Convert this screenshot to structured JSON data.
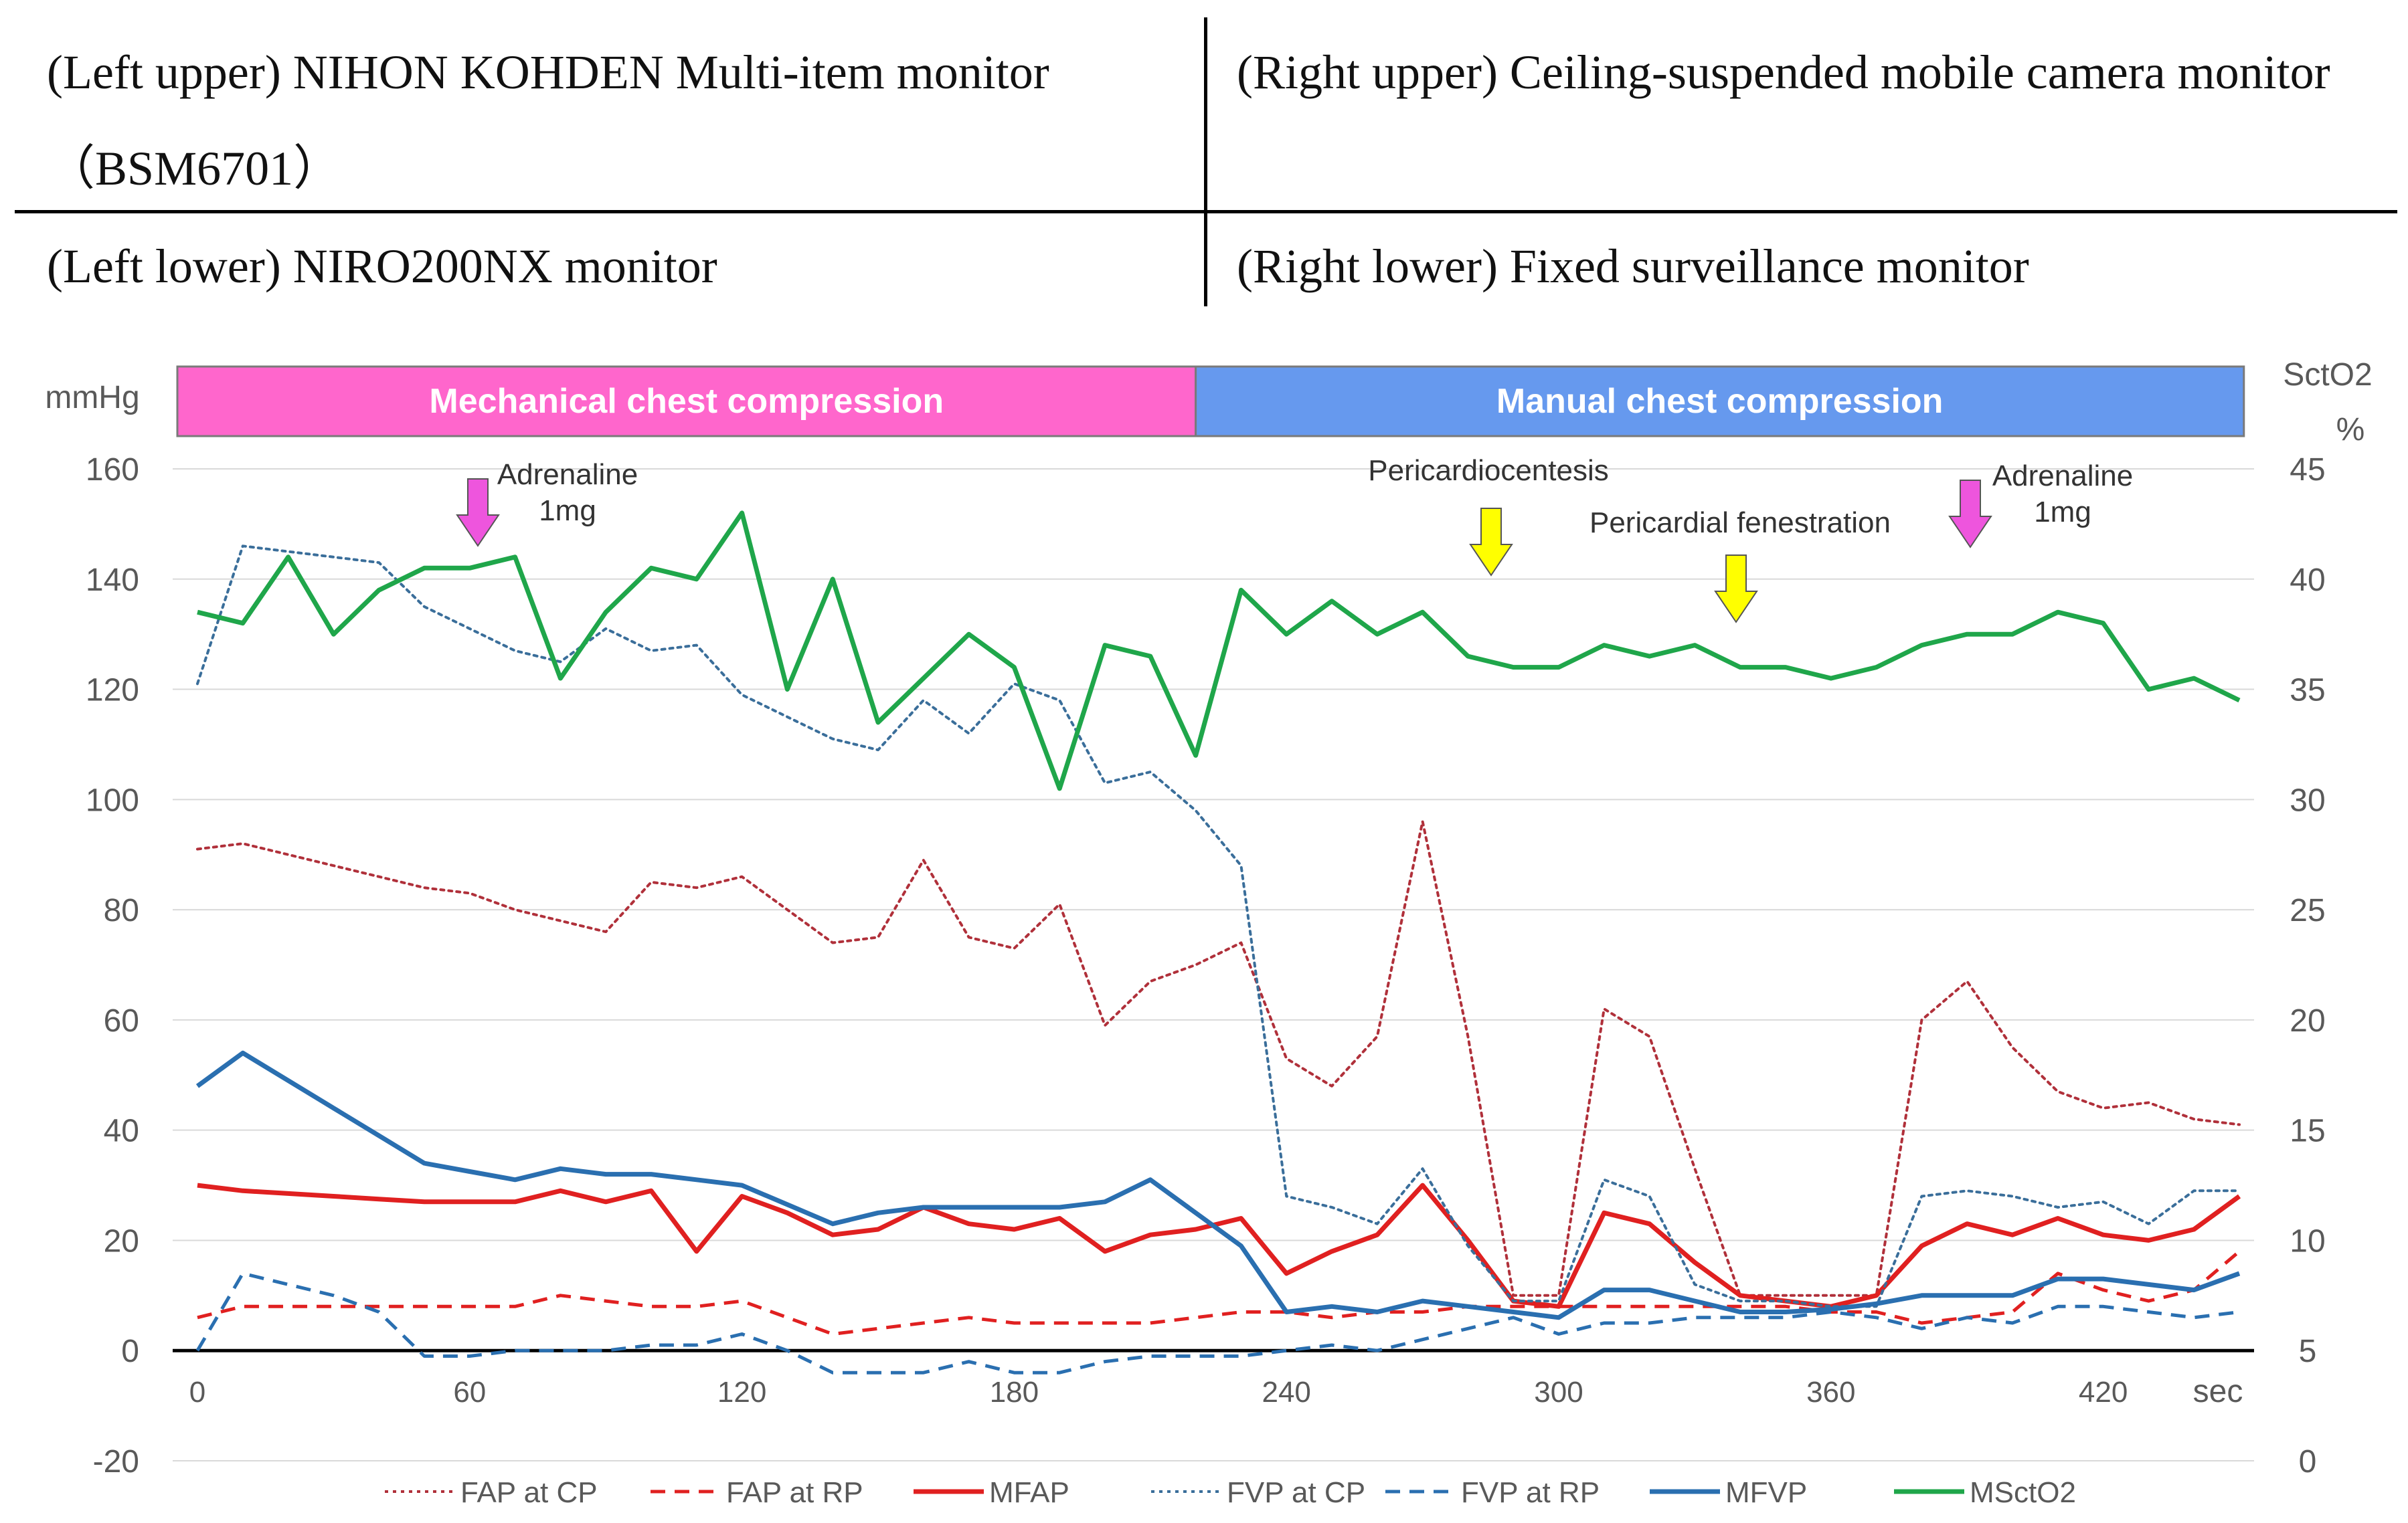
{
  "caption_table": {
    "left_upper": "(Left upper) NIHON KOHDEN Multi-item monitor（BSM6701）",
    "right_upper": "(Right upper) Ceiling-suspended mobile camera monitor",
    "left_lower": "(Left lower) NIRO200NX monitor",
    "right_lower": "(Right lower) Fixed surveillance monitor"
  },
  "colors": {
    "mechanical_band": "#ff66cc",
    "manual_band": "#6699ee",
    "red": "#e02020",
    "blue": "#2a6fb0",
    "green": "#1fa64a",
    "arrow_magenta": "#ee55dd",
    "arrow_yellow": "#ffff00"
  },
  "chart_data": {
    "type": "line",
    "title": "",
    "xlabel": "sec",
    "ylabel_left": "mmHg",
    "ylabel_right_1": "SctO2",
    "ylabel_right_2": "%",
    "xlim": [
      0,
      450
    ],
    "ylim_left": [
      -20,
      160
    ],
    "ylim_right": [
      0,
      45
    ],
    "xticks": [
      0,
      60,
      120,
      180,
      240,
      300,
      360,
      420
    ],
    "yticks_left": [
      -20,
      0,
      20,
      40,
      60,
      80,
      100,
      120,
      140,
      160
    ],
    "yticks_right": [
      0,
      5,
      10,
      15,
      20,
      25,
      30,
      35,
      40,
      45
    ],
    "grid": true,
    "legend_position": "bottom",
    "phases": [
      {
        "label": "Mechanical chest compression",
        "start": -5,
        "end": 220,
        "color": "#ff66cc"
      },
      {
        "label": "Manual chest compression",
        "start": 220,
        "end": 451,
        "color": "#6699ee"
      }
    ],
    "annotations": [
      {
        "label": "Adrenaline\n1mg",
        "x": 62,
        "arrow": "magenta"
      },
      {
        "label": "Pericardiocentesis",
        "x": 284,
        "arrow": "yellow"
      },
      {
        "label": "Pericardial fenestration",
        "x": 338,
        "arrow": "yellow"
      },
      {
        "label": "Adrenaline\n1mg",
        "x": 391,
        "arrow": "magenta"
      }
    ],
    "series": [
      {
        "name": "FAP at CP",
        "axis": "left",
        "style": "dotted",
        "color": "#b0303a",
        "x": [
          0,
          10,
          20,
          30,
          40,
          50,
          60,
          70,
          80,
          90,
          100,
          110,
          120,
          130,
          140,
          150,
          160,
          170,
          180,
          190,
          200,
          210,
          220,
          230,
          240,
          250,
          260,
          270,
          280,
          290,
          300,
          310,
          320,
          330,
          340,
          350,
          360,
          370,
          380,
          390,
          400,
          410,
          420,
          430,
          440,
          450
        ],
        "y": [
          91,
          92,
          90,
          88,
          86,
          84,
          83,
          80,
          78,
          76,
          85,
          84,
          86,
          80,
          74,
          75,
          89,
          75,
          73,
          81,
          59,
          67,
          70,
          74,
          53,
          48,
          57,
          96,
          57,
          10,
          10,
          62,
          57,
          33,
          10,
          10,
          10,
          10,
          60,
          67,
          55,
          47,
          44,
          45,
          42,
          41
        ]
      },
      {
        "name": "FAP at RP",
        "axis": "left",
        "style": "dashed",
        "color": "#e02020",
        "x": [
          0,
          10,
          20,
          30,
          40,
          50,
          60,
          70,
          80,
          90,
          100,
          110,
          120,
          130,
          140,
          150,
          160,
          170,
          180,
          190,
          200,
          210,
          220,
          230,
          240,
          250,
          260,
          270,
          280,
          290,
          300,
          310,
          320,
          330,
          340,
          350,
          360,
          370,
          380,
          390,
          400,
          410,
          420,
          430,
          440,
          450
        ],
        "y": [
          6,
          8,
          8,
          8,
          8,
          8,
          8,
          8,
          10,
          9,
          8,
          8,
          9,
          6,
          3,
          4,
          5,
          6,
          5,
          5,
          5,
          5,
          6,
          7,
          7,
          6,
          7,
          7,
          8,
          8,
          8,
          8,
          8,
          8,
          8,
          8,
          7,
          7,
          5,
          6,
          7,
          14,
          11,
          9,
          11,
          18
        ]
      },
      {
        "name": "MFAP",
        "axis": "left",
        "style": "solid",
        "color": "#e02020",
        "x": [
          0,
          10,
          20,
          30,
          40,
          50,
          60,
          70,
          80,
          90,
          100,
          110,
          120,
          130,
          140,
          150,
          160,
          170,
          180,
          190,
          200,
          210,
          220,
          230,
          240,
          250,
          260,
          270,
          280,
          290,
          300,
          310,
          320,
          330,
          340,
          350,
          360,
          370,
          380,
          390,
          400,
          410,
          420,
          430,
          440,
          450
        ],
        "y": [
          30,
          29,
          28.5,
          28,
          27.5,
          27,
          27,
          27,
          29,
          27,
          29,
          18,
          28,
          25,
          21,
          22,
          26,
          23,
          22,
          24,
          18,
          21,
          22,
          24,
          14,
          18,
          21,
          30,
          20,
          9,
          8,
          25,
          23,
          16,
          10,
          9,
          8,
          10,
          19,
          23,
          21,
          24,
          21,
          20,
          22,
          28
        ]
      },
      {
        "name": "FVP at CP",
        "axis": "left",
        "style": "dotted",
        "color": "#3a6e9a",
        "x": [
          0,
          10,
          20,
          30,
          40,
          50,
          60,
          70,
          80,
          90,
          100,
          110,
          120,
          130,
          140,
          150,
          160,
          170,
          180,
          190,
          200,
          210,
          220,
          230,
          240,
          250,
          260,
          270,
          280,
          290,
          300,
          310,
          320,
          330,
          340,
          350,
          360,
          370,
          380,
          390,
          400,
          410,
          420,
          430,
          440,
          450
        ],
        "y": [
          121,
          146,
          145,
          144,
          143,
          135,
          131,
          127,
          125,
          131,
          127,
          128,
          119,
          115,
          111,
          109,
          118,
          112,
          121,
          118,
          103,
          105,
          98,
          88,
          28,
          26,
          23,
          33,
          19,
          9,
          9,
          31,
          28,
          12,
          9,
          9,
          8,
          8,
          28,
          29,
          28,
          26,
          27,
          23,
          29,
          29
        ]
      },
      {
        "name": "FVP at RP",
        "axis": "left",
        "style": "dashed",
        "color": "#2a6fb0",
        "x": [
          0,
          10,
          20,
          30,
          40,
          50,
          60,
          70,
          80,
          90,
          100,
          110,
          120,
          130,
          140,
          150,
          160,
          170,
          180,
          190,
          200,
          210,
          220,
          230,
          240,
          250,
          260,
          270,
          280,
          290,
          300,
          310,
          320,
          330,
          340,
          350,
          360,
          370,
          380,
          390,
          400,
          410,
          420,
          430,
          440,
          450
        ],
        "y": [
          0,
          14,
          12,
          10,
          7,
          -1,
          -1,
          0,
          0,
          0,
          1,
          1,
          3,
          0,
          -4,
          -4,
          -4,
          -2,
          -4,
          -4,
          -2,
          -1,
          -1,
          -1,
          0,
          1,
          0,
          2,
          4,
          6,
          3,
          5,
          5,
          6,
          6,
          6,
          7,
          6,
          4,
          6,
          5,
          8,
          8,
          7,
          6,
          7
        ]
      },
      {
        "name": "MFVP",
        "axis": "left",
        "style": "solid",
        "color": "#2a6fb0",
        "x": [
          0,
          10,
          20,
          30,
          40,
          50,
          60,
          70,
          80,
          90,
          100,
          110,
          120,
          130,
          140,
          150,
          160,
          170,
          180,
          190,
          200,
          210,
          220,
          230,
          240,
          250,
          260,
          270,
          280,
          290,
          300,
          310,
          320,
          330,
          340,
          350,
          360,
          370,
          380,
          390,
          400,
          410,
          420,
          430,
          440,
          450
        ],
        "y": [
          48,
          54,
          49,
          44,
          39,
          34,
          32.5,
          31,
          33,
          32,
          32,
          31,
          30,
          26.5,
          23,
          25,
          26,
          26,
          26,
          26,
          27,
          31,
          25,
          19,
          7,
          8,
          7,
          9,
          8,
          7,
          6,
          11,
          11,
          9,
          7,
          7,
          7.5,
          8.5,
          10,
          10,
          10,
          13,
          13,
          12,
          11,
          14
        ]
      },
      {
        "name": "MSctO2",
        "axis": "right",
        "style": "solid",
        "color": "#1fa64a",
        "x": [
          0,
          10,
          20,
          30,
          40,
          50,
          60,
          70,
          80,
          90,
          100,
          110,
          120,
          130,
          140,
          150,
          160,
          170,
          180,
          190,
          200,
          210,
          220,
          230,
          240,
          250,
          260,
          270,
          280,
          290,
          300,
          310,
          320,
          330,
          340,
          350,
          360,
          370,
          380,
          390,
          400,
          410,
          420,
          430,
          440,
          450
        ],
        "y": [
          38.5,
          38,
          41,
          37.5,
          39.5,
          40.5,
          40.5,
          41,
          35.5,
          38.5,
          40.5,
          40,
          43,
          35,
          40,
          33.5,
          35.5,
          37.5,
          36,
          30.5,
          37,
          36.5,
          32,
          39.5,
          37.5,
          39,
          37.5,
          38.5,
          36.5,
          36,
          36,
          37,
          36.5,
          37,
          36,
          36,
          35.5,
          36,
          37,
          37.5,
          37.5,
          38.5,
          38,
          35,
          35.5,
          34.5
        ]
      }
    ]
  },
  "legend": {
    "fap_cp": "FAP at CP",
    "fap_rp": "FAP at RP",
    "mfap": "MFAP",
    "fvp_cp": "FVP at CP",
    "fvp_rp": "FVP at RP",
    "mfvp": "MFVP",
    "msct": "MSctO2"
  }
}
